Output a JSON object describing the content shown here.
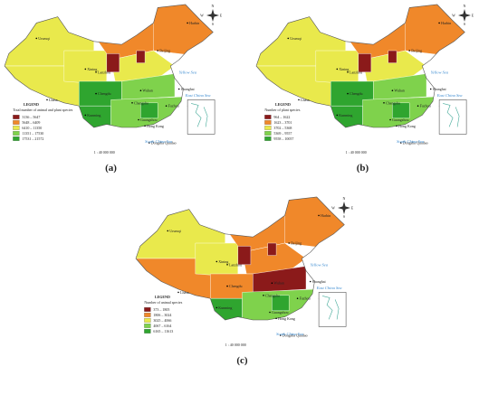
{
  "panels": [
    {
      "label": "(a)",
      "legend_title": "LEGEND",
      "legend_subtitle": "Total number of animal and plant species",
      "legend_items": [
        {
          "text": "3136 – 5647",
          "color": "#8b1a1a"
        },
        {
          "text": "5648 – 6409",
          "color": "#f0882a"
        },
        {
          "text": "6410 – 11350",
          "color": "#e9e94c"
        },
        {
          "text": "11351 – 17530",
          "color": "#7fd24c"
        },
        {
          "text": "17531 – 21572",
          "color": "#2fa52f"
        }
      ],
      "scale": "1 : 40 000 000"
    },
    {
      "label": "(b)",
      "legend_title": "LEGEND",
      "legend_subtitle": "Number of plant species",
      "legend_items": [
        {
          "text": "964 – 1622",
          "color": "#8b1a1a"
        },
        {
          "text": "1623 – 3701",
          "color": "#f0882a"
        },
        {
          "text": "3702 – 5368",
          "color": "#e9e94c"
        },
        {
          "text": "5369 – 9557",
          "color": "#7fd24c"
        },
        {
          "text": "9558 – 10057",
          "color": "#2fa52f"
        }
      ],
      "scale": "1 : 40 000 000"
    },
    {
      "label": "(c)",
      "legend_title": "LEGEND",
      "legend_subtitle": "Number of animal species",
      "legend_items": [
        {
          "text": "373 – 1805",
          "color": "#8b1a1a"
        },
        {
          "text": "1806 – 3024",
          "color": "#f0882a"
        },
        {
          "text": "3025 – 4066",
          "color": "#e9e94c"
        },
        {
          "text": "4067 – 6164",
          "color": "#7fd24c"
        },
        {
          "text": "6165 – 11613",
          "color": "#2fa52f"
        }
      ],
      "scale": "1 : 40 000 000"
    }
  ],
  "compass": [
    "N",
    "S",
    "E",
    "W"
  ],
  "seas": [
    "Yellow Sea",
    "East China Sea",
    "South China Sea"
  ],
  "cities": [
    "Urumqi",
    "Lhasa",
    "Xining",
    "Lanzhou",
    "Beijing",
    "Harbin",
    "Chengdu",
    "Wuhan",
    "Shanghai",
    "Kunming",
    "Guangzhou",
    "Hong Kong",
    "Fuzhou",
    "Changsha",
    "Dongsha Qundao"
  ]
}
